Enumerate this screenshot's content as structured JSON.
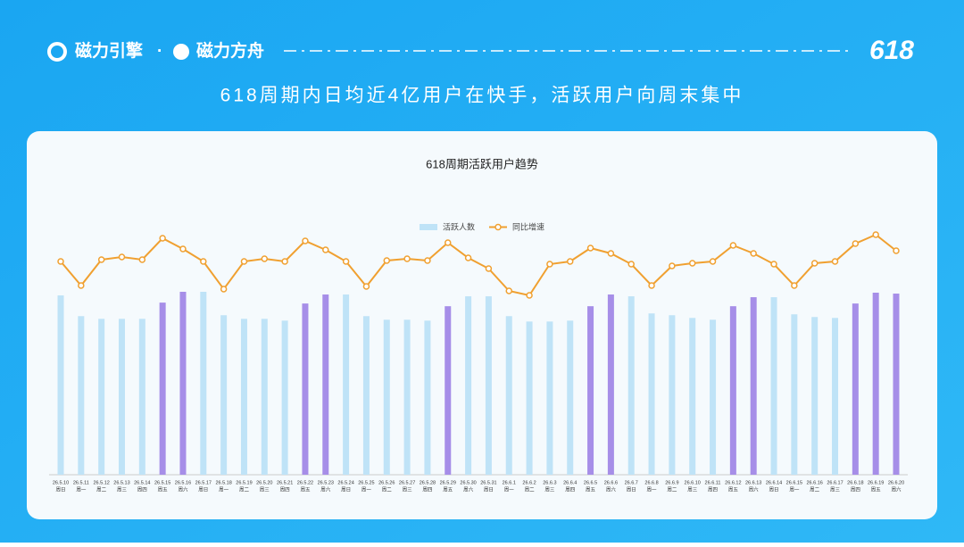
{
  "header": {
    "brand_1": "磁力引擎",
    "separator": "·",
    "brand_2": "磁力方舟",
    "badge": "618",
    "headline": "618周期内日均近4亿用户在快手，活跃用户向周末集中"
  },
  "chart_data": {
    "type": "combo",
    "title": "618周期活跃用户趋势",
    "categories": [
      "26.5.10",
      "26.5.11",
      "26.5.12",
      "26.5.13",
      "26.5.14",
      "26.5.15",
      "26.5.16",
      "26.5.17",
      "26.5.18",
      "26.5.19",
      "26.5.20",
      "26.5.21",
      "26.5.22",
      "26.5.23",
      "26.5.24",
      "26.5.25",
      "26.5.26",
      "26.5.27",
      "26.5.28",
      "26.5.29",
      "26.5.30",
      "26.5.31",
      "26.6.1",
      "26.6.2",
      "26.6.3",
      "26.6.4",
      "26.6.5",
      "26.6.6",
      "26.6.7",
      "26.6.8",
      "26.6.9",
      "26.6.10",
      "26.6.11",
      "26.6.12",
      "26.6.13",
      "26.6.14",
      "26.6.15",
      "26.6.16",
      "26.6.17",
      "26.6.18",
      "26.6.19",
      "26.6.20"
    ],
    "weekdays": [
      "周日",
      "周一",
      "周二",
      "周三",
      "周四",
      "周五",
      "周六",
      "周日",
      "周一",
      "周二",
      "周三",
      "周四",
      "周五",
      "周六",
      "周日",
      "周一",
      "周二",
      "周三",
      "周四",
      "周五",
      "周六",
      "周日",
      "周一",
      "周二",
      "周三",
      "周四",
      "周五",
      "周六",
      "周日",
      "周一",
      "周二",
      "周三",
      "周四",
      "周五",
      "周六",
      "周日",
      "周一",
      "周二",
      "周三",
      "周四",
      "周五",
      "周六"
    ],
    "series": [
      {
        "name": "活跃人数",
        "type": "bar",
        "color": "#bfe3f7",
        "highlight_color": "#a68ee8",
        "highlight": [
          5,
          6,
          12,
          13,
          19,
          26,
          27,
          33,
          34,
          39,
          40,
          41
        ],
        "values": [
          199,
          176,
          173,
          173,
          173,
          191,
          203,
          203,
          177,
          173,
          173,
          171,
          190,
          200,
          200,
          176,
          172,
          172,
          171,
          187,
          198,
          198,
          176,
          170,
          170,
          171,
          187,
          200,
          198,
          179,
          177,
          174,
          172,
          187,
          197,
          197,
          178,
          175,
          174,
          190,
          202,
          201
        ]
      },
      {
        "name": "同比增速",
        "type": "line",
        "color": "#f0a030",
        "values": [
          47,
          20,
          49,
          52,
          49,
          73,
          61,
          47,
          16,
          47,
          50,
          47,
          70,
          60,
          47,
          19,
          48,
          50,
          48,
          68,
          51,
          39,
          14,
          9,
          44,
          47,
          62,
          56,
          44,
          20,
          42,
          45,
          47,
          65,
          56,
          44,
          20,
          45,
          47,
          67,
          77,
          59
        ]
      }
    ]
  }
}
